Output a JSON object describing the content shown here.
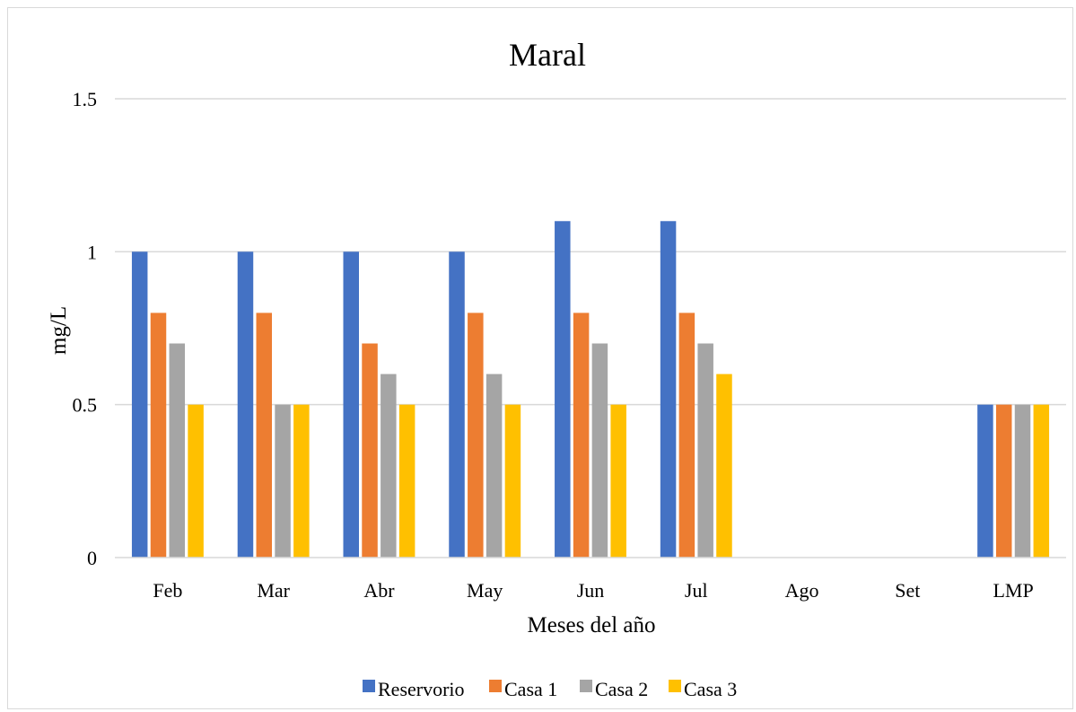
{
  "chart_data": {
    "type": "bar",
    "title": "Maral",
    "xlabel": "Meses del año",
    "ylabel": "mg/L",
    "categories": [
      "Feb",
      "Mar",
      "Abr",
      "May",
      "Jun",
      "Jul",
      "Ago",
      "Set",
      "LMP"
    ],
    "ylim": [
      0,
      1.5
    ],
    "yticks": [
      0,
      0.5,
      1,
      1.5
    ],
    "ytick_labels": [
      "0",
      "0.5",
      "1",
      "1.5"
    ],
    "grid": true,
    "legend_position": "bottom",
    "series": [
      {
        "name": "Reservorio",
        "color": "#4472C4",
        "values": [
          1.0,
          1.0,
          1.0,
          1.0,
          1.1,
          1.1,
          null,
          null,
          0.5
        ]
      },
      {
        "name": "Casa 1",
        "color": "#ED7D31",
        "values": [
          0.8,
          0.8,
          0.7,
          0.8,
          0.8,
          0.8,
          null,
          null,
          0.5
        ]
      },
      {
        "name": "Casa 2",
        "color": "#A5A5A5",
        "values": [
          0.7,
          0.5,
          0.6,
          0.6,
          0.7,
          0.7,
          null,
          null,
          0.5
        ]
      },
      {
        "name": "Casa 3",
        "color": "#FFC000",
        "values": [
          0.5,
          0.5,
          0.5,
          0.5,
          0.5,
          0.6,
          null,
          null,
          0.5
        ]
      }
    ]
  }
}
